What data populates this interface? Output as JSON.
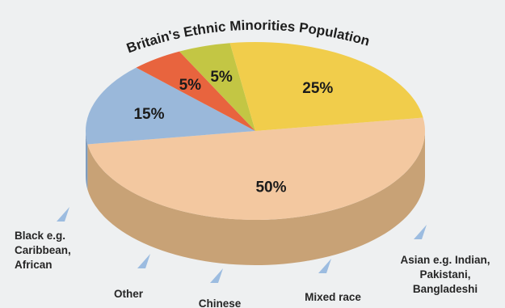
{
  "chart_data": {
    "type": "pie",
    "title": "Britain's Ethnic Minorities Population",
    "categories": [
      "Asian e.g. Indian, Pakistani, Bangladeshi",
      "Mixed race",
      "Chinese",
      "Other",
      "Black e.g. Caribbean, African"
    ],
    "values": [
      50,
      15,
      5,
      5,
      25
    ],
    "value_labels": [
      "50%",
      "15%",
      "5%",
      "5%",
      "25%"
    ],
    "legend": [
      {
        "lines": [
          "Asian e.g. Indian,",
          "Pakistani,",
          "Bangladeshi"
        ]
      },
      {
        "lines": [
          "Mixed race"
        ]
      },
      {
        "lines": [
          "Chinese"
        ]
      },
      {
        "lines": [
          "Other"
        ]
      },
      {
        "lines": [
          "Black e.g.",
          "Caribbean,",
          "African"
        ]
      }
    ],
    "colors": {
      "top": [
        "#f3c8a0",
        "#9ab8da",
        "#e8643e",
        "#c3c644",
        "#f1cd4b"
      ],
      "side": [
        "#c8a276",
        "#7e9cbf",
        "#c55033",
        "#a3a435",
        "#c9a737"
      ],
      "pointer": "#9cbce0"
    }
  }
}
